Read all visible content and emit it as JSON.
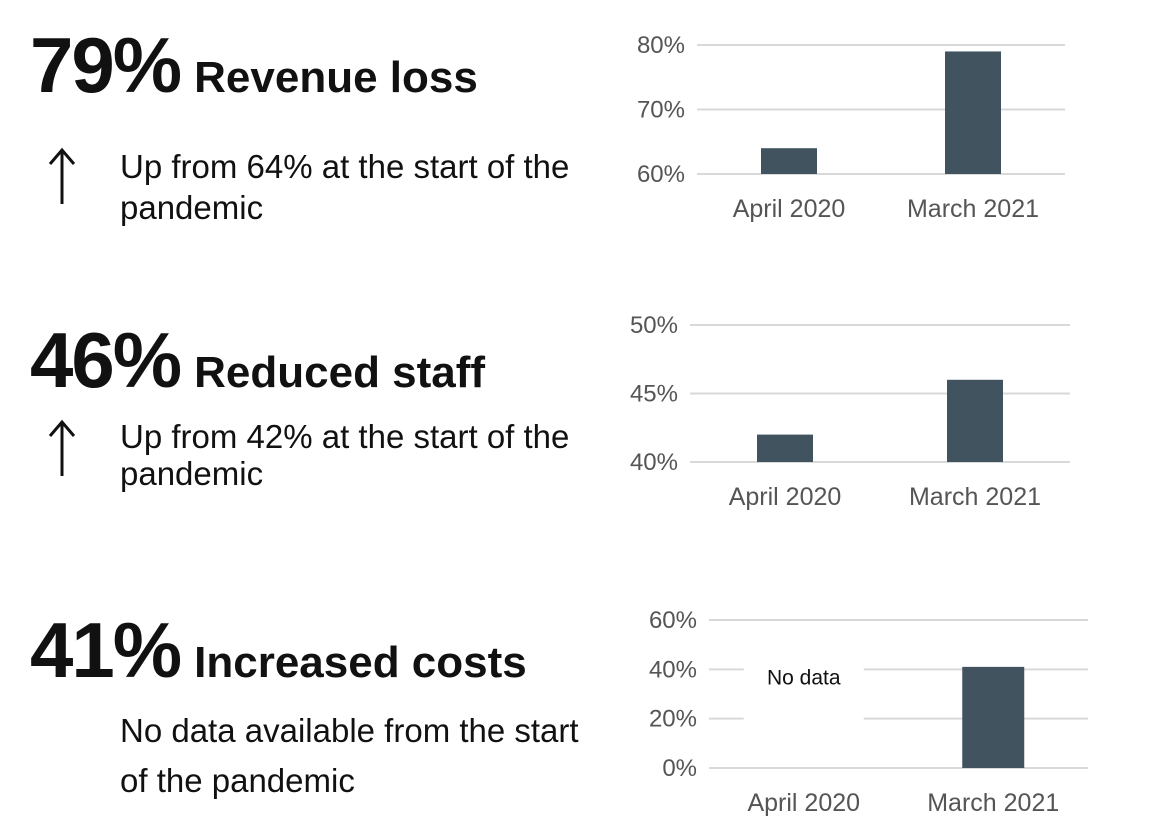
{
  "panels": [
    {
      "stat": "79%",
      "label": "Revenue loss",
      "arrow_icon": "arrow-up-icon",
      "description": "Up from 64% at the start of the pandemic"
    },
    {
      "stat": "46%",
      "label": "Reduced staff",
      "arrow_icon": "arrow-up-icon",
      "description": "Up from 42% at the start of the pandemic"
    },
    {
      "stat": "41%",
      "label": "Increased costs",
      "arrow_icon": null,
      "description": "No data available from the start of the pandemic"
    }
  ],
  "colors": {
    "bar": "#425360",
    "grid": "#d9d9d9",
    "text": "#111111",
    "tick": "#555555"
  },
  "chart_data": [
    {
      "type": "bar",
      "categories": [
        "April 2020",
        "March 2021"
      ],
      "values": [
        64,
        79
      ],
      "ylim": [
        60,
        80
      ],
      "yticks": [
        60,
        70,
        80
      ],
      "ytick_labels": [
        "60%",
        "70%",
        "80%"
      ],
      "grid": true
    },
    {
      "type": "bar",
      "categories": [
        "April 2020",
        "March 2021"
      ],
      "values": [
        42,
        46
      ],
      "ylim": [
        40,
        50
      ],
      "yticks": [
        40,
        45,
        50
      ],
      "ytick_labels": [
        "40%",
        "45%",
        "50%"
      ],
      "grid": true
    },
    {
      "type": "bar",
      "categories": [
        "April 2020",
        "March 2021"
      ],
      "values": [
        null,
        41
      ],
      "ylim": [
        0,
        60
      ],
      "yticks": [
        0,
        20,
        40,
        60
      ],
      "ytick_labels": [
        "0%",
        "20%",
        "40%",
        "60%"
      ],
      "grid": true,
      "annotation": "No data"
    }
  ]
}
